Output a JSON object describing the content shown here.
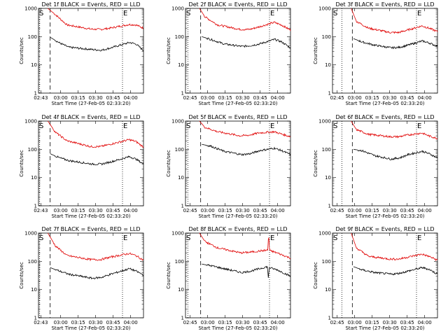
{
  "chart_data": [
    {
      "type": "line",
      "title": "Det 1f BLACK = Events, RED = LLD",
      "xlabel": "Start Time (27-Feb-05 02:33:20)",
      "ylabel": "Counts/sec",
      "yscale": "log",
      "ylim": [
        1,
        1000
      ],
      "y_ticks": [
        "1",
        "10",
        "100",
        "1000"
      ],
      "x_ticks": [
        "02:43",
        "03:00",
        "03:15",
        "03:30",
        "03:45",
        "04:00"
      ],
      "markers": [
        "S",
        "E"
      ],
      "dotted_lines": [
        "02:42",
        "03:53"
      ],
      "dashed_line": "02:51",
      "series": [
        {
          "color": "#e00000",
          "start": "02:49",
          "points": [
            [
              0,
              1000
            ],
            [
              0.08,
              600
            ],
            [
              0.2,
              260
            ],
            [
              0.45,
              185
            ],
            [
              0.55,
              180
            ],
            [
              0.65,
              200
            ],
            [
              0.85,
              270
            ],
            [
              0.92,
              260
            ],
            [
              1,
              200
            ]
          ]
        },
        {
          "color": "#000000",
          "start": "02:51",
          "points": [
            [
              0,
              95
            ],
            [
              0.1,
              60
            ],
            [
              0.2,
              42
            ],
            [
              0.45,
              35
            ],
            [
              0.55,
              33
            ],
            [
              0.65,
              40
            ],
            [
              0.85,
              62
            ],
            [
              0.92,
              55
            ],
            [
              1,
              32
            ]
          ]
        }
      ]
    },
    {
      "type": "line",
      "title": "Det 2f BLACK = Events, RED = LLD",
      "xlabel": "Start Time (27-Feb-05 02:33:20)",
      "ylabel": "Counts/sec",
      "yscale": "log",
      "ylim": [
        1,
        1000
      ],
      "y_ticks": [
        "1",
        "10",
        "100",
        "1000"
      ],
      "x_ticks": [
        "02:45",
        "03:00",
        "03:15",
        "03:30",
        "03:45",
        "04:00"
      ],
      "markers": [
        "S",
        "E"
      ],
      "dotted_lines": [
        "02:43",
        "03:53"
      ],
      "dashed_line": "02:54",
      "series": [
        {
          "color": "#e00000",
          "start": "02:53",
          "points": [
            [
              0,
              1000
            ],
            [
              0.06,
              500
            ],
            [
              0.2,
              260
            ],
            [
              0.45,
              180
            ],
            [
              0.55,
              180
            ],
            [
              0.65,
              220
            ],
            [
              0.82,
              320
            ],
            [
              0.9,
              260
            ],
            [
              1,
              170
            ]
          ]
        },
        {
          "color": "#000000",
          "start": "02:55",
          "points": [
            [
              0,
              100
            ],
            [
              0.1,
              80
            ],
            [
              0.25,
              55
            ],
            [
              0.45,
              45
            ],
            [
              0.55,
              48
            ],
            [
              0.65,
              55
            ],
            [
              0.82,
              80
            ],
            [
              0.9,
              65
            ],
            [
              1,
              40
            ]
          ]
        }
      ]
    },
    {
      "type": "line",
      "title": "Det 3f BLACK = Events, RED = LLD",
      "xlabel": "Start Time (27-Feb-05 02:33:20)",
      "ylabel": "Counts/sec",
      "yscale": "log",
      "ylim": [
        1,
        1000
      ],
      "y_ticks": [
        "1",
        "10",
        "100",
        "1000"
      ],
      "x_ticks": [
        "02:45",
        "03:00",
        "03:15",
        "03:30",
        "03:45",
        "04:00"
      ],
      "markers": [
        "S",
        "E"
      ],
      "dotted_lines": [
        "02:49",
        "03:53"
      ],
      "dashed_line": "02:58",
      "series": [
        {
          "color": "#e00000",
          "start": "02:57",
          "points": [
            [
              0,
              1000
            ],
            [
              0.06,
              350
            ],
            [
              0.2,
              200
            ],
            [
              0.45,
              140
            ],
            [
              0.55,
              140
            ],
            [
              0.65,
              170
            ],
            [
              0.82,
              240
            ],
            [
              0.9,
              200
            ],
            [
              1,
              150
            ]
          ]
        },
        {
          "color": "#000000",
          "start": "02:59",
          "points": [
            [
              0,
              85
            ],
            [
              0.1,
              65
            ],
            [
              0.25,
              50
            ],
            [
              0.45,
              40
            ],
            [
              0.55,
              42
            ],
            [
              0.65,
              50
            ],
            [
              0.82,
              70
            ],
            [
              0.9,
              60
            ],
            [
              1,
              45
            ]
          ]
        }
      ]
    },
    {
      "type": "line",
      "title": "Det 4f BLACK = Events, RED = LLD",
      "xlabel": "Start Time (27-Feb-05 02:33:20)",
      "ylabel": "Counts/sec",
      "yscale": "log",
      "ylim": [
        1,
        1000
      ],
      "y_ticks": [
        "1",
        "10",
        "100",
        "1000"
      ],
      "x_ticks": [
        "02:43",
        "03:00",
        "03:15",
        "03:30",
        "03:45",
        "04:00"
      ],
      "markers": [
        "S",
        "E"
      ],
      "dotted_lines": [
        "02:42",
        "03:53"
      ],
      "dashed_line": "02:51",
      "series": [
        {
          "color": "#e00000",
          "start": "02:49",
          "points": [
            [
              0,
              1000
            ],
            [
              0.08,
              400
            ],
            [
              0.2,
              200
            ],
            [
              0.45,
              125
            ],
            [
              0.55,
              125
            ],
            [
              0.65,
              150
            ],
            [
              0.85,
              220
            ],
            [
              0.92,
              190
            ],
            [
              1,
              120
            ]
          ]
        },
        {
          "color": "#000000",
          "start": "02:51",
          "points": [
            [
              0,
              70
            ],
            [
              0.1,
              50
            ],
            [
              0.2,
              40
            ],
            [
              0.45,
              30
            ],
            [
              0.55,
              30
            ],
            [
              0.65,
              36
            ],
            [
              0.85,
              55
            ],
            [
              0.92,
              45
            ],
            [
              1,
              30
            ]
          ]
        }
      ]
    },
    {
      "type": "line",
      "title": "Det 5f BLACK = Events, RED = LLD",
      "xlabel": "Start Time (27-Feb-05 02:33:20)",
      "ylabel": "Counts/sec",
      "yscale": "log",
      "ylim": [
        1,
        1000
      ],
      "y_ticks": [
        "1",
        "10",
        "100",
        "1000"
      ],
      "x_ticks": [
        "02:45",
        "03:00",
        "03:15",
        "03:30",
        "03:45",
        "04:00"
      ],
      "markers": [
        "S",
        "E"
      ],
      "dotted_lines": [
        "02:43",
        "03:53"
      ],
      "dashed_line": "02:54",
      "series": [
        {
          "color": "#e00000",
          "start": "02:53",
          "points": [
            [
              0,
              1000
            ],
            [
              0.06,
              600
            ],
            [
              0.2,
              420
            ],
            [
              0.45,
              300
            ],
            [
              0.55,
              320
            ],
            [
              0.65,
              380
            ],
            [
              0.82,
              420
            ],
            [
              0.9,
              350
            ],
            [
              1,
              280
            ]
          ]
        },
        {
          "color": "#000000",
          "start": "02:55",
          "points": [
            [
              0,
              150
            ],
            [
              0.1,
              130
            ],
            [
              0.25,
              85
            ],
            [
              0.45,
              65
            ],
            [
              0.55,
              70
            ],
            [
              0.65,
              90
            ],
            [
              0.82,
              110
            ],
            [
              0.9,
              90
            ],
            [
              1,
              65
            ]
          ]
        }
      ]
    },
    {
      "type": "line",
      "title": "Det 6f BLACK = Events, RED = LLD",
      "xlabel": "Start Time (27-Feb-05 02:33:20)",
      "ylabel": "Counts/sec",
      "yscale": "log",
      "ylim": [
        1,
        1000
      ],
      "y_ticks": [
        "1",
        "10",
        "100",
        "1000"
      ],
      "x_ticks": [
        "02:45",
        "03:00",
        "03:15",
        "03:30",
        "03:45",
        "04:00"
      ],
      "markers": [
        "S",
        "E"
      ],
      "dotted_lines": [
        "02:49",
        "03:53"
      ],
      "dashed_line": "02:58",
      "series": [
        {
          "color": "#e00000",
          "start": "02:57",
          "points": [
            [
              0,
              1000
            ],
            [
              0.06,
              500
            ],
            [
              0.2,
              340
            ],
            [
              0.45,
              280
            ],
            [
              0.55,
              280
            ],
            [
              0.65,
              320
            ],
            [
              0.82,
              380
            ],
            [
              0.9,
              300
            ],
            [
              1,
              240
            ]
          ]
        },
        {
          "color": "#000000",
          "start": "02:59",
          "points": [
            [
              0,
              100
            ],
            [
              0.1,
              90
            ],
            [
              0.25,
              60
            ],
            [
              0.45,
              45
            ],
            [
              0.55,
              50
            ],
            [
              0.65,
              65
            ],
            [
              0.82,
              85
            ],
            [
              0.9,
              70
            ],
            [
              1,
              50
            ]
          ]
        }
      ]
    },
    {
      "type": "line",
      "title": "Det 7f BLACK = Events, RED = LLD",
      "xlabel": "Start Time (27-Feb-05 02:33:20)",
      "ylabel": "Counts/sec",
      "yscale": "log",
      "ylim": [
        1,
        1000
      ],
      "y_ticks": [
        "1",
        "10",
        "100",
        "1000"
      ],
      "x_ticks": [
        "02:43",
        "03:00",
        "03:15",
        "03:30",
        "03:45",
        "04:00"
      ],
      "markers": [
        "S",
        "E"
      ],
      "dotted_lines": [
        "02:42",
        "03:53"
      ],
      "dashed_line": "02:51",
      "series": [
        {
          "color": "#e00000",
          "start": "02:49",
          "points": [
            [
              0,
              1000
            ],
            [
              0.08,
              350
            ],
            [
              0.2,
              160
            ],
            [
              0.45,
              115
            ],
            [
              0.55,
              115
            ],
            [
              0.65,
              140
            ],
            [
              0.85,
              190
            ],
            [
              0.92,
              160
            ],
            [
              1,
              110
            ]
          ]
        },
        {
          "color": "#000000",
          "start": "02:51",
          "points": [
            [
              0,
              60
            ],
            [
              0.1,
              45
            ],
            [
              0.2,
              35
            ],
            [
              0.45,
              25
            ],
            [
              0.55,
              27
            ],
            [
              0.65,
              35
            ],
            [
              0.85,
              55
            ],
            [
              0.92,
              45
            ],
            [
              1,
              33
            ]
          ]
        }
      ]
    },
    {
      "type": "line",
      "title": "Det 8f BLACK = Events, RED = LLD",
      "xlabel": "Start Time (27-Feb-05 02:33:20)",
      "ylabel": "Counts/sec",
      "yscale": "log",
      "ylim": [
        1,
        1000
      ],
      "y_ticks": [
        "1",
        "10",
        "100",
        "1000"
      ],
      "x_ticks": [
        "02:45",
        "03:00",
        "03:15",
        "03:30",
        "03:45",
        "04:00"
      ],
      "markers": [
        "S",
        "E"
      ],
      "dotted_lines": [
        "02:43",
        "03:53"
      ],
      "dashed_line": "02:54",
      "series": [
        {
          "color": "#e00000",
          "start": "02:53",
          "points": [
            [
              0,
              1000
            ],
            [
              0.06,
              500
            ],
            [
              0.2,
              300
            ],
            [
              0.45,
              200
            ],
            [
              0.55,
              210
            ],
            [
              0.65,
              230
            ],
            [
              0.75,
              250
            ],
            [
              0.76,
              1000
            ],
            [
              0.77,
              240
            ],
            [
              0.85,
              200
            ],
            [
              1,
              130
            ]
          ]
        },
        {
          "color": "#000000",
          "start": "02:55",
          "points": [
            [
              0,
              80
            ],
            [
              0.1,
              70
            ],
            [
              0.25,
              55
            ],
            [
              0.45,
              40
            ],
            [
              0.55,
              45
            ],
            [
              0.65,
              55
            ],
            [
              0.74,
              65
            ],
            [
              0.75,
              25
            ],
            [
              0.76,
              60
            ],
            [
              0.85,
              50
            ],
            [
              1,
              30
            ]
          ]
        }
      ]
    },
    {
      "type": "line",
      "title": "Det 9f BLACK = Events, RED = LLD",
      "xlabel": "Start Time (27-Feb-05 02:33:20)",
      "ylabel": "Counts/sec",
      "yscale": "log",
      "ylim": [
        1,
        1000
      ],
      "y_ticks": [
        "1",
        "10",
        "100",
        "1000"
      ],
      "x_ticks": [
        "02:45",
        "03:00",
        "03:15",
        "03:30",
        "03:45",
        "04:00"
      ],
      "markers": [
        "S",
        "E"
      ],
      "dotted_lines": [
        "02:49",
        "03:53"
      ],
      "dashed_line": "02:58",
      "series": [
        {
          "color": "#e00000",
          "start": "02:57",
          "points": [
            [
              0,
              1000
            ],
            [
              0.06,
              300
            ],
            [
              0.2,
              150
            ],
            [
              0.45,
              120
            ],
            [
              0.55,
              120
            ],
            [
              0.65,
              140
            ],
            [
              0.82,
              180
            ],
            [
              0.9,
              150
            ],
            [
              1,
              110
            ]
          ]
        },
        {
          "color": "#000000",
          "start": "02:59",
          "points": [
            [
              0,
              65
            ],
            [
              0.1,
              50
            ],
            [
              0.25,
              40
            ],
            [
              0.45,
              35
            ],
            [
              0.55,
              38
            ],
            [
              0.65,
              45
            ],
            [
              0.82,
              60
            ],
            [
              0.9,
              52
            ],
            [
              1,
              35
            ]
          ]
        }
      ]
    }
  ]
}
